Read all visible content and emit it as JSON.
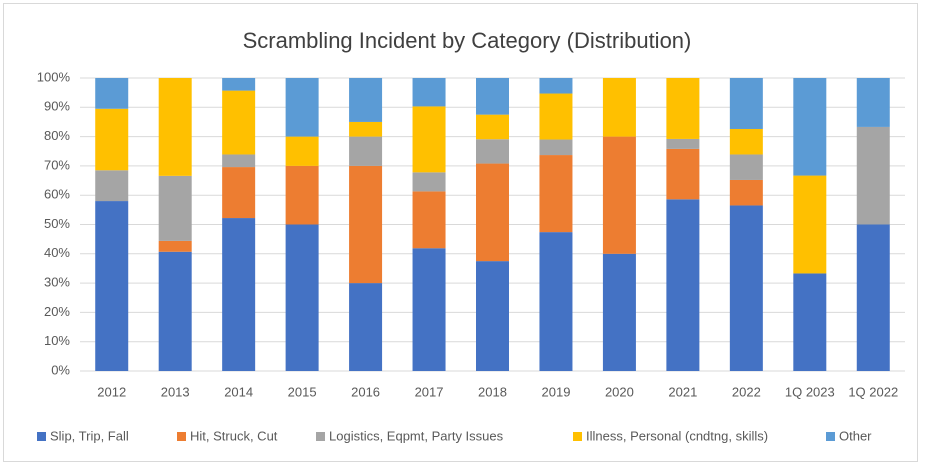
{
  "chart_data": {
    "type": "stacked_bar_100",
    "title": "Scrambling Incident by Category (Distribution)",
    "categories": [
      "2012",
      "2013",
      "2014",
      "2015",
      "2016",
      "2017",
      "2018",
      "2019",
      "2020",
      "2021",
      "2022",
      "1Q 2023",
      "1Q 2022"
    ],
    "series": [
      {
        "name": "Slip, Trip, Fall",
        "color": "#4472c4",
        "values": [
          58,
          40.7,
          52.2,
          50,
          30,
          41.9,
          37.5,
          47.4,
          40,
          58.6,
          56.5,
          33.3,
          50
        ]
      },
      {
        "name": "Hit, Struck, Cut",
        "color": "#ed7d31",
        "values": [
          0,
          3.7,
          17.4,
          20,
          40,
          19.4,
          33.3,
          26.3,
          40,
          17.2,
          8.7,
          0,
          0
        ]
      },
      {
        "name": "Logistics, Eqpmt, Party Issues",
        "color": "#a5a5a5",
        "values": [
          10.5,
          22.2,
          4.3,
          0,
          10,
          6.5,
          8.3,
          5.3,
          0,
          3.4,
          8.7,
          0,
          33.3
        ]
      },
      {
        "name": "Illness, Personal (cndtng, skills)",
        "color": "#ffc000",
        "values": [
          21,
          33.4,
          21.8,
          10,
          5,
          22.5,
          8.4,
          15.7,
          20,
          20.8,
          8.7,
          33.4,
          0
        ]
      },
      {
        "name": "Other",
        "color": "#5b9bd5",
        "values": [
          10.5,
          0,
          4.3,
          20,
          15,
          9.7,
          12.5,
          5.3,
          0,
          0,
          17.4,
          33.3,
          16.7
        ]
      }
    ],
    "ylim": [
      0,
      100
    ],
    "yticks": [
      {
        "value": 0,
        "label": "0%"
      },
      {
        "value": 10,
        "label": "10%"
      },
      {
        "value": 20,
        "label": "20%"
      },
      {
        "value": 30,
        "label": "30%"
      },
      {
        "value": 40,
        "label": "40%"
      },
      {
        "value": 50,
        "label": "50%"
      },
      {
        "value": 60,
        "label": "60%"
      },
      {
        "value": 70,
        "label": "70%"
      },
      {
        "value": 80,
        "label": "80%"
      },
      {
        "value": 90,
        "label": "90%"
      },
      {
        "value": 100,
        "label": "100%"
      }
    ],
    "grid": true,
    "legend": "bottom"
  }
}
